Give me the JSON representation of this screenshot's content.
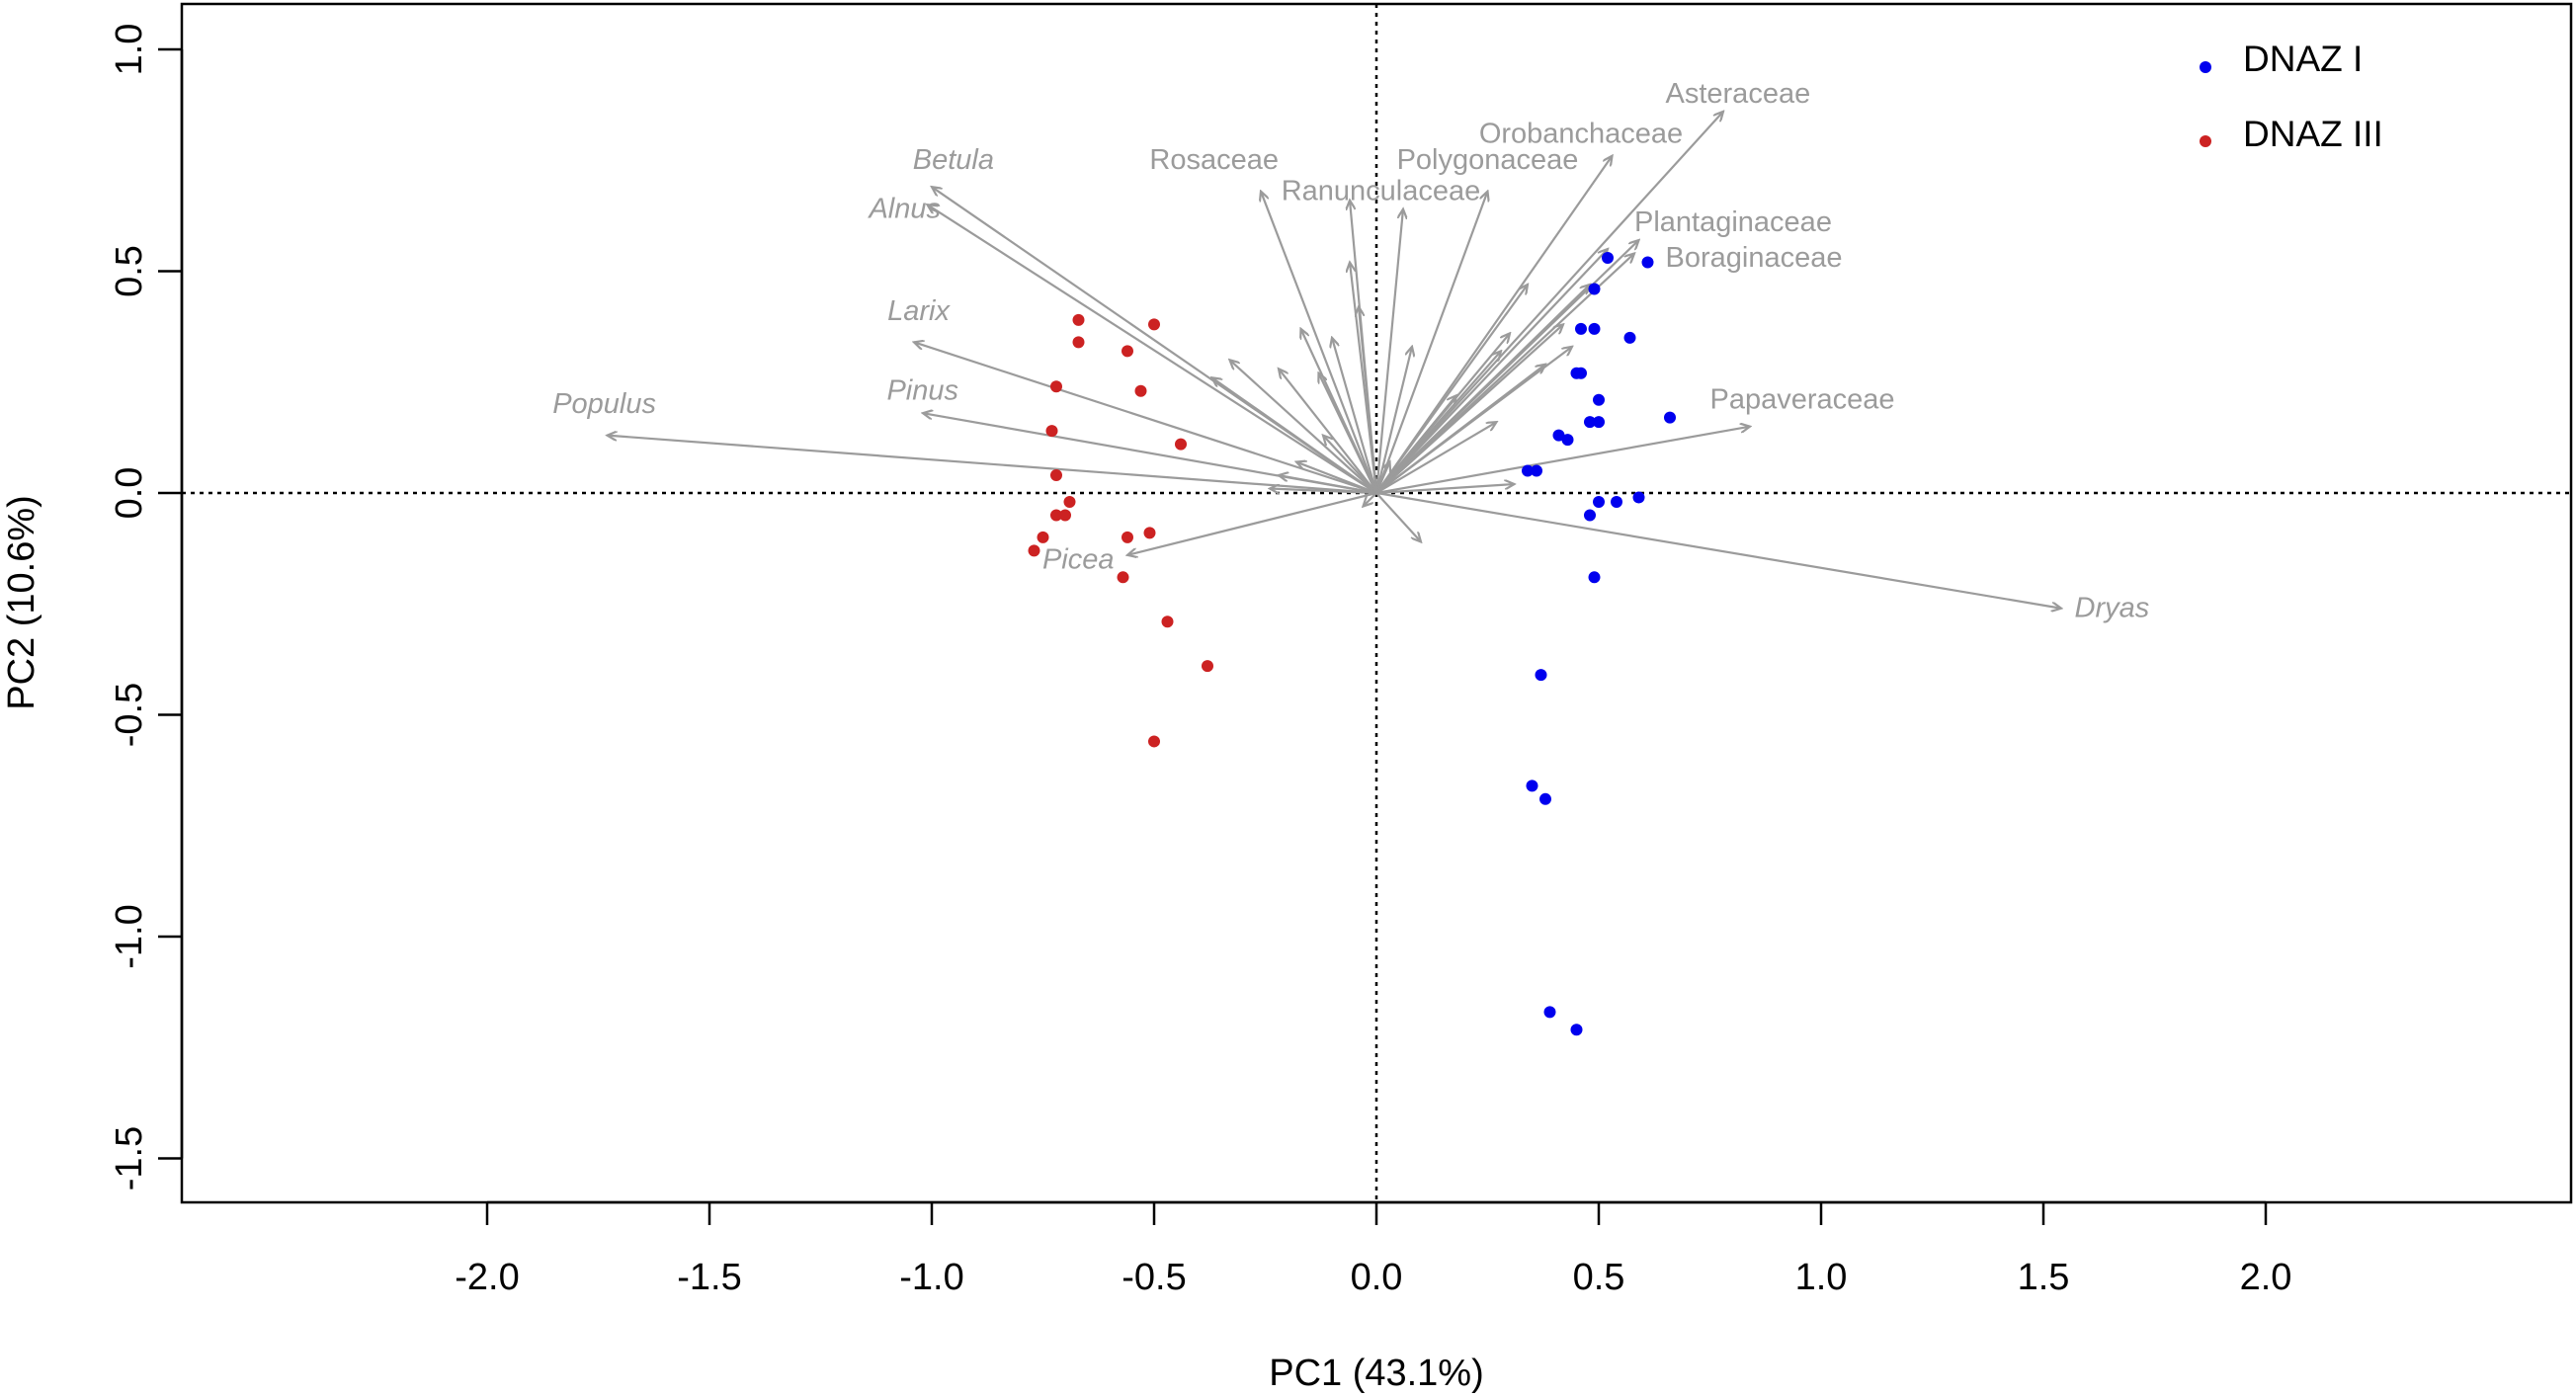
{
  "chart_data": {
    "type": "scatter",
    "title": "",
    "xlabel": "PC1 (43.1%)",
    "ylabel": "PC2 (10.6%)",
    "xlim": [
      -2.7,
      2.7
    ],
    "ylim": [
      -1.6,
      1.1
    ],
    "x_ticks": [
      -2.0,
      -1.5,
      -1.0,
      -0.5,
      0.0,
      0.5,
      1.0,
      1.5,
      2.0
    ],
    "x_tick_labels": [
      "-2.0",
      "-1.5",
      "-1.0",
      "-0.5",
      "0.0",
      "0.5",
      "1.0",
      "1.5",
      "2.0"
    ],
    "y_ticks": [
      1.0,
      0.5,
      0.0,
      -0.5,
      -1.0,
      -1.5
    ],
    "y_tick_labels": [
      "1.0",
      "0.5",
      "0.0",
      "-0.5",
      "-1.0",
      "-1.5"
    ],
    "reference_lines": {
      "x": 0,
      "y": 0,
      "style": "dotted"
    },
    "legend_position": "top-right",
    "colors": {
      "DNAZ I": "#0000ee",
      "DNAZ III": "#cc2222",
      "arrow": "#9b9b9b"
    },
    "series": [
      {
        "name": "DNAZ I",
        "points": [
          [
            0.52,
            0.53
          ],
          [
            0.61,
            0.52
          ],
          [
            0.49,
            0.46
          ],
          [
            0.46,
            0.37
          ],
          [
            0.49,
            0.37
          ],
          [
            0.57,
            0.35
          ],
          [
            0.45,
            0.27
          ],
          [
            0.46,
            0.27
          ],
          [
            0.5,
            0.21
          ],
          [
            0.66,
            0.17
          ],
          [
            0.5,
            0.16
          ],
          [
            0.48,
            0.16
          ],
          [
            0.41,
            0.13
          ],
          [
            0.43,
            0.12
          ],
          [
            0.36,
            0.05
          ],
          [
            0.34,
            0.05
          ],
          [
            0.5,
            -0.02
          ],
          [
            0.54,
            -0.02
          ],
          [
            0.59,
            -0.01
          ],
          [
            0.48,
            -0.05
          ],
          [
            0.49,
            -0.19
          ],
          [
            0.37,
            -0.41
          ],
          [
            0.35,
            -0.66
          ],
          [
            0.38,
            -0.69
          ],
          [
            0.39,
            -1.17
          ],
          [
            0.45,
            -1.21
          ]
        ]
      },
      {
        "name": "DNAZ III",
        "points": [
          [
            -0.67,
            0.39
          ],
          [
            -0.5,
            0.38
          ],
          [
            -0.67,
            0.34
          ],
          [
            -0.56,
            0.32
          ],
          [
            -0.72,
            0.24
          ],
          [
            -0.53,
            0.23
          ],
          [
            -0.73,
            0.14
          ],
          [
            -0.44,
            0.11
          ],
          [
            -0.72,
            0.04
          ],
          [
            -0.69,
            -0.02
          ],
          [
            -0.72,
            -0.05
          ],
          [
            -0.7,
            -0.05
          ],
          [
            -0.51,
            -0.09
          ],
          [
            -0.56,
            -0.1
          ],
          [
            -0.75,
            -0.1
          ],
          [
            -0.77,
            -0.13
          ],
          [
            -0.57,
            -0.19
          ],
          [
            -0.47,
            -0.29
          ],
          [
            -0.38,
            -0.39
          ],
          [
            -0.5,
            -0.56
          ]
        ]
      }
    ],
    "loadings": [
      {
        "label": "Populus",
        "italic": true,
        "end": [
          -1.73,
          0.13
        ],
        "anchor": "end",
        "text_pos": [
          -1.62,
          0.18
        ]
      },
      {
        "label": "Betula",
        "italic": true,
        "end": [
          -1.0,
          0.69
        ],
        "anchor": "end",
        "text_pos": [
          -0.86,
          0.73
        ]
      },
      {
        "label": "Alnus",
        "italic": true,
        "end": [
          -1.01,
          0.65
        ],
        "anchor": "end",
        "text_pos": [
          -0.98,
          0.62
        ]
      },
      {
        "label": "Larix",
        "italic": true,
        "end": [
          -1.04,
          0.34
        ],
        "anchor": "end",
        "text_pos": [
          -0.96,
          0.39
        ]
      },
      {
        "label": "Pinus",
        "italic": true,
        "end": [
          -1.02,
          0.18
        ],
        "anchor": "end",
        "text_pos": [
          -0.94,
          0.21
        ]
      },
      {
        "label": "Picea",
        "italic": true,
        "end": [
          -0.56,
          -0.14
        ],
        "anchor": "end",
        "text_pos": [
          -0.59,
          -0.17
        ]
      },
      {
        "label": "Rosaceae",
        "italic": false,
        "end": [
          -0.26,
          0.68
        ],
        "anchor": "end",
        "text_pos": [
          -0.22,
          0.73
        ]
      },
      {
        "label": "Ranunculaceae",
        "italic": false,
        "end": [
          -0.06,
          0.66
        ],
        "anchor": "middle",
        "text_pos": [
          0.01,
          0.66
        ]
      },
      {
        "label": "Polygonaceae",
        "italic": false,
        "end": [
          0.25,
          0.68
        ],
        "anchor": "middle",
        "text_pos": [
          0.25,
          0.73
        ]
      },
      {
        "label": "Orobanchaceae",
        "italic": false,
        "end": [
          0.53,
          0.76
        ],
        "anchor": "middle",
        "text_pos": [
          0.46,
          0.79
        ]
      },
      {
        "label": "Asteraceae",
        "italic": false,
        "end": [
          0.78,
          0.86
        ],
        "anchor": "start",
        "text_pos": [
          0.65,
          0.88
        ]
      },
      {
        "label": "Plantaginaceae",
        "italic": false,
        "end": [
          0.59,
          0.57
        ],
        "anchor": "start",
        "text_pos": [
          0.58,
          0.59
        ]
      },
      {
        "label": "Boraginaceae",
        "italic": false,
        "end": [
          0.58,
          0.54
        ],
        "anchor": "start",
        "text_pos": [
          0.65,
          0.51
        ]
      },
      {
        "label": "Papaveraceae",
        "italic": false,
        "end": [
          0.84,
          0.15
        ],
        "anchor": "start",
        "text_pos": [
          0.75,
          0.19
        ]
      },
      {
        "label": "Dryas",
        "italic": true,
        "end": [
          1.54,
          -0.26
        ],
        "anchor": "start",
        "text_pos": [
          1.57,
          -0.28
        ]
      }
    ],
    "minor_loadings": [
      [
        -0.06,
        0.52
      ],
      [
        0.06,
        0.64
      ],
      [
        0.08,
        0.33
      ],
      [
        -0.1,
        0.35
      ],
      [
        -0.17,
        0.37
      ],
      [
        -0.33,
        0.3
      ],
      [
        -0.37,
        0.26
      ],
      [
        -0.22,
        0.28
      ],
      [
        -0.13,
        0.27
      ],
      [
        -0.04,
        0.42
      ],
      [
        0.34,
        0.47
      ],
      [
        0.3,
        0.36
      ],
      [
        0.42,
        0.38
      ],
      [
        0.48,
        0.47
      ],
      [
        0.52,
        0.55
      ],
      [
        0.28,
        0.32
      ],
      [
        0.38,
        0.29
      ],
      [
        0.44,
        0.33
      ],
      [
        0.27,
        0.16
      ],
      [
        0.18,
        0.22
      ],
      [
        0.31,
        0.02
      ],
      [
        -0.18,
        0.07
      ],
      [
        -0.22,
        0.04
      ],
      [
        -0.24,
        0.01
      ],
      [
        0.1,
        -0.11
      ],
      [
        -0.03,
        -0.03
      ],
      [
        0.03,
        0.07
      ],
      [
        -0.12,
        0.13
      ]
    ]
  }
}
